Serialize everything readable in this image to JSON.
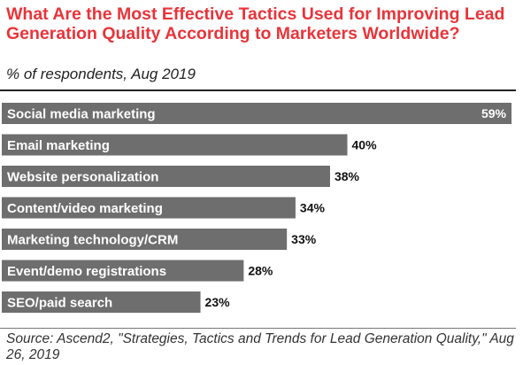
{
  "chart_data": {
    "type": "bar",
    "orientation": "horizontal",
    "title": "What Are the Most Effective Tactics Used for Improving Lead Generation Quality According to Marketers Worldwide?",
    "subtitle": "% of respondents, Aug 2019",
    "categories": [
      "Social media marketing",
      "Email marketing",
      "Website personalization",
      "Content/video marketing",
      "Marketing technology/CRM",
      "Event/demo registrations",
      "SEO/paid search"
    ],
    "values": [
      59,
      40,
      38,
      34,
      33,
      28,
      23
    ],
    "value_labels": [
      "59%",
      "40%",
      "38%",
      "34%",
      "33%",
      "28%",
      "23%"
    ],
    "xlim": [
      0,
      59
    ],
    "grid": false,
    "legend": "none",
    "bar_color": "#6e6e6e",
    "source": "Source: Ascend2, \"Strategies, Tactics and Trends for Lead Generation Quality,\" Aug 26, 2019"
  },
  "colors": {
    "title": "#e8343a",
    "bar": "#6e6e6e"
  }
}
